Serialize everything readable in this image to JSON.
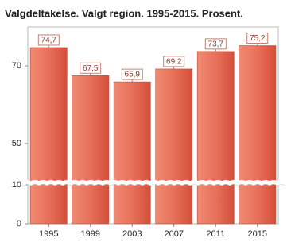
{
  "chart_data": {
    "type": "bar",
    "title": "Valgdeltakelse. Valgt region. 1995-2015. Prosent.",
    "categories": [
      "1995",
      "1999",
      "2003",
      "2007",
      "2011",
      "2015"
    ],
    "values": [
      74.7,
      67.5,
      65.9,
      69.2,
      73.7,
      75.2
    ],
    "value_labels": [
      "74,7",
      "67,5",
      "65,9",
      "69,2",
      "73,7",
      "75,2"
    ],
    "color": "#e2604a",
    "ylim": [
      0,
      80
    ],
    "yticks": [
      0,
      10,
      50,
      70
    ],
    "axis_break": [
      10,
      50
    ],
    "grid": false
  }
}
